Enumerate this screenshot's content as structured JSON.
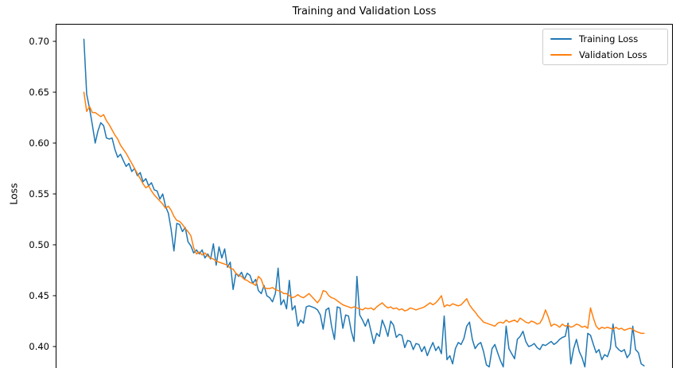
{
  "title": "Training and Validation Loss",
  "y_axis": {
    "label": "Loss",
    "ticks": [
      "0.70",
      "0.65",
      "0.60",
      "0.55",
      "0.50",
      "0.45",
      "0.40"
    ]
  },
  "x_axis": {
    "label": "",
    "ticks": []
  },
  "legend": {
    "items": [
      {
        "label": "Training Loss",
        "color": "#1f77b4"
      },
      {
        "label": "Validation Loss",
        "color": "#ff7f0e"
      }
    ]
  },
  "chart_data": {
    "type": "line",
    "title": "Training and Validation Loss",
    "xlabel": "",
    "ylabel": "Loss",
    "yticks": [
      0.4,
      0.45,
      0.5,
      0.55,
      0.6,
      0.65,
      0.7
    ],
    "ylim_visible": [
      0.379,
      0.717
    ],
    "grid": false,
    "legend_position": "upper right",
    "x": "epoch index 1-200 (x-axis cropped out of the visible screenshot)",
    "series": [
      {
        "name": "Training Loss",
        "color": "#1f77b4",
        "values": [
          0.702,
          0.648,
          0.634,
          0.618,
          0.6,
          0.612,
          0.62,
          0.617,
          0.605,
          0.604,
          0.605,
          0.594,
          0.586,
          0.589,
          0.583,
          0.577,
          0.58,
          0.572,
          0.575,
          0.568,
          0.571,
          0.562,
          0.565,
          0.558,
          0.561,
          0.554,
          0.553,
          0.545,
          0.55,
          0.538,
          0.531,
          0.515,
          0.494,
          0.521,
          0.52,
          0.513,
          0.517,
          0.503,
          0.499,
          0.492,
          0.495,
          0.491,
          0.495,
          0.487,
          0.491,
          0.486,
          0.501,
          0.48,
          0.498,
          0.487,
          0.496,
          0.478,
          0.483,
          0.456,
          0.472,
          0.469,
          0.473,
          0.466,
          0.472,
          0.47,
          0.462,
          0.466,
          0.455,
          0.452,
          0.46,
          0.45,
          0.448,
          0.444,
          0.452,
          0.477,
          0.441,
          0.446,
          0.437,
          0.465,
          0.436,
          0.44,
          0.42,
          0.426,
          0.423,
          0.439,
          0.44,
          0.439,
          0.438,
          0.436,
          0.431,
          0.417,
          0.436,
          0.438,
          0.42,
          0.407,
          0.439,
          0.438,
          0.418,
          0.431,
          0.43,
          0.415,
          0.405,
          0.469,
          0.431,
          0.426,
          0.42,
          0.427,
          0.415,
          0.403,
          0.413,
          0.41,
          0.426,
          0.419,
          0.41,
          0.425,
          0.421,
          0.409,
          0.412,
          0.411,
          0.399,
          0.406,
          0.405,
          0.397,
          0.403,
          0.402,
          0.395,
          0.4,
          0.391,
          0.398,
          0.404,
          0.396,
          0.4,
          0.393,
          0.43,
          0.387,
          0.391,
          0.383,
          0.398,
          0.404,
          0.402,
          0.408,
          0.42,
          0.424,
          0.407,
          0.398,
          0.402,
          0.404,
          0.395,
          0.382,
          0.38,
          0.398,
          0.402,
          0.394,
          0.386,
          0.38,
          0.42,
          0.398,
          0.393,
          0.388,
          0.407,
          0.41,
          0.415,
          0.405,
          0.4,
          0.401,
          0.403,
          0.399,
          0.397,
          0.402,
          0.401,
          0.403,
          0.405,
          0.402,
          0.404,
          0.407,
          0.409,
          0.41,
          0.423,
          0.383,
          0.398,
          0.407,
          0.395,
          0.389,
          0.38,
          0.413,
          0.411,
          0.402,
          0.394,
          0.397,
          0.387,
          0.392,
          0.39,
          0.398,
          0.422,
          0.4,
          0.397,
          0.395,
          0.397,
          0.389,
          0.393,
          0.42,
          0.397,
          0.394,
          0.383,
          0.381
        ]
      },
      {
        "name": "Validation Loss",
        "color": "#ff7f0e",
        "values": [
          0.65,
          0.631,
          0.636,
          0.63,
          0.63,
          0.628,
          0.626,
          0.628,
          0.622,
          0.618,
          0.613,
          0.608,
          0.604,
          0.598,
          0.594,
          0.59,
          0.585,
          0.58,
          0.575,
          0.57,
          0.565,
          0.56,
          0.556,
          0.558,
          0.553,
          0.549,
          0.546,
          0.543,
          0.54,
          0.536,
          0.538,
          0.534,
          0.528,
          0.524,
          0.523,
          0.52,
          0.516,
          0.513,
          0.509,
          0.497,
          0.491,
          0.493,
          0.49,
          0.492,
          0.489,
          0.487,
          0.486,
          0.484,
          0.483,
          0.482,
          0.481,
          0.48,
          0.477,
          0.476,
          0.472,
          0.47,
          0.469,
          0.466,
          0.465,
          0.463,
          0.462,
          0.46,
          0.469,
          0.466,
          0.458,
          0.457,
          0.457,
          0.458,
          0.456,
          0.455,
          0.454,
          0.452,
          0.452,
          0.45,
          0.448,
          0.449,
          0.451,
          0.449,
          0.448,
          0.45,
          0.452,
          0.449,
          0.446,
          0.443,
          0.447,
          0.455,
          0.454,
          0.45,
          0.448,
          0.447,
          0.445,
          0.443,
          0.441,
          0.44,
          0.439,
          0.438,
          0.439,
          0.438,
          0.437,
          0.436,
          0.438,
          0.437,
          0.438,
          0.436,
          0.439,
          0.441,
          0.443,
          0.44,
          0.438,
          0.439,
          0.437,
          0.438,
          0.436,
          0.437,
          0.435,
          0.436,
          0.438,
          0.437,
          0.436,
          0.437,
          0.438,
          0.439,
          0.441,
          0.443,
          0.441,
          0.443,
          0.446,
          0.45,
          0.439,
          0.441,
          0.44,
          0.442,
          0.441,
          0.44,
          0.441,
          0.444,
          0.447,
          0.441,
          0.437,
          0.434,
          0.43,
          0.427,
          0.424,
          0.423,
          0.422,
          0.421,
          0.42,
          0.423,
          0.424,
          0.423,
          0.426,
          0.424,
          0.425,
          0.426,
          0.424,
          0.428,
          0.426,
          0.424,
          0.423,
          0.425,
          0.424,
          0.422,
          0.423,
          0.428,
          0.436,
          0.429,
          0.42,
          0.422,
          0.421,
          0.419,
          0.422,
          0.42,
          0.421,
          0.419,
          0.42,
          0.422,
          0.421,
          0.419,
          0.42,
          0.418,
          0.438,
          0.428,
          0.42,
          0.417,
          0.419,
          0.418,
          0.419,
          0.418,
          0.417,
          0.419,
          0.417,
          0.418,
          0.416,
          0.417,
          0.418,
          0.417,
          0.415,
          0.414,
          0.413,
          0.413
        ]
      }
    ]
  }
}
